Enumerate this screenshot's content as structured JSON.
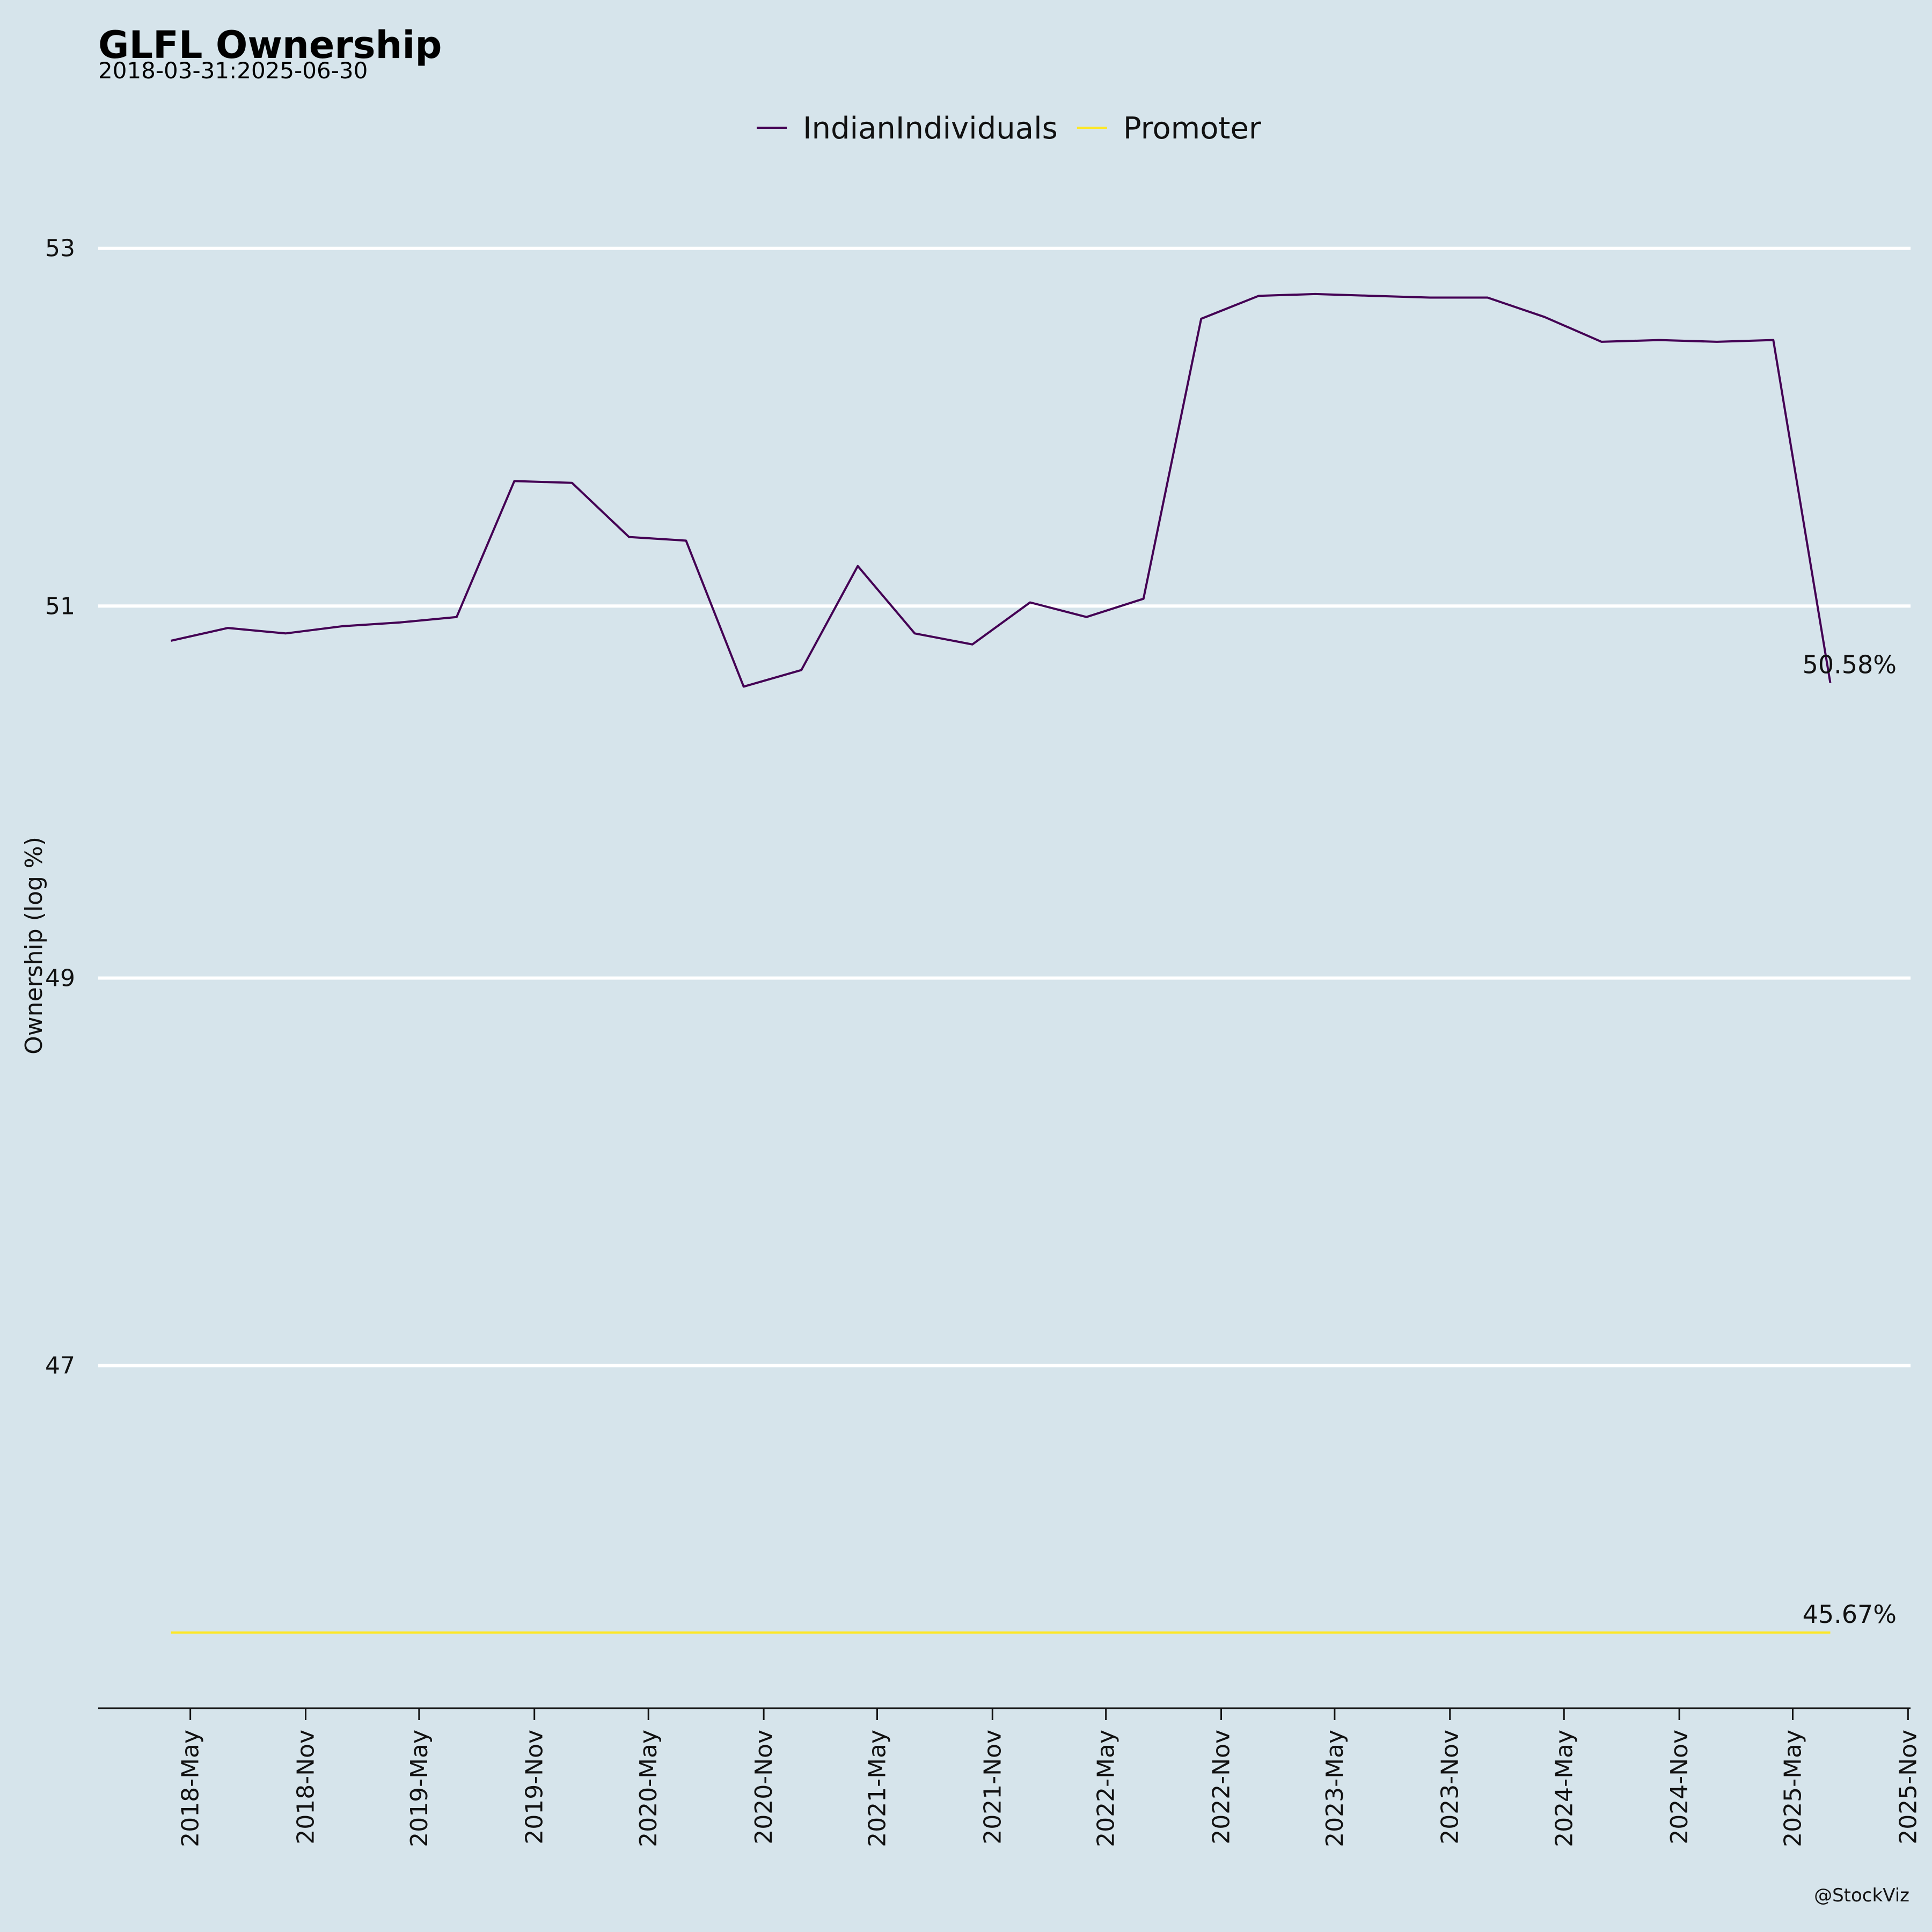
{
  "chart_data": {
    "type": "line",
    "title": "GLFL Ownership",
    "subtitle": "2018-03-31:2025-06-30",
    "ylabel": "Ownership (log %)",
    "xlabel": "",
    "credit": "@StockViz",
    "y_scale": "log",
    "ylim": [
      45.3,
      53.5
    ],
    "yticks": [
      47,
      49,
      51,
      53
    ],
    "ytick_labels": [
      "47",
      "49",
      "51",
      "53"
    ],
    "x_tick_labels": [
      "2018-May",
      "2018-Nov",
      "2019-May",
      "2019-Nov",
      "2020-May",
      "2020-Nov",
      "2021-May",
      "2021-Nov",
      "2022-May",
      "2022-Nov",
      "2023-May",
      "2023-Nov",
      "2024-May",
      "2024-Nov",
      "2025-May",
      "2025-Nov"
    ],
    "x_tick_dates": [
      "2018-05-01",
      "2018-11-01",
      "2019-05-01",
      "2019-11-01",
      "2020-05-01",
      "2020-11-01",
      "2021-05-01",
      "2021-11-01",
      "2022-05-01",
      "2022-11-01",
      "2023-05-01",
      "2023-11-01",
      "2024-05-01",
      "2024-11-01",
      "2025-05-01",
      "2025-11-01"
    ],
    "xlim": [
      "2017-12-05",
      "2025-11-05"
    ],
    "legend_position": "top-center",
    "grid": "horizontal",
    "x": [
      "2018-03-31",
      "2018-06-30",
      "2018-09-30",
      "2018-12-31",
      "2019-03-31",
      "2019-06-30",
      "2019-09-30",
      "2019-12-31",
      "2020-03-31",
      "2020-06-30",
      "2020-09-30",
      "2020-12-31",
      "2021-03-31",
      "2021-06-30",
      "2021-09-30",
      "2021-12-31",
      "2022-03-31",
      "2022-06-30",
      "2022-09-30",
      "2022-12-31",
      "2023-03-31",
      "2023-06-30",
      "2023-09-30",
      "2023-12-31",
      "2024-03-31",
      "2024-06-30",
      "2024-09-30",
      "2024-12-31",
      "2025-03-31",
      "2025-06-30"
    ],
    "series": [
      {
        "name": "IndianIndividuals",
        "color": "#440154",
        "end_label": "50.58%",
        "values": [
          50.81,
          50.88,
          50.85,
          50.89,
          50.91,
          50.94,
          51.69,
          51.68,
          51.38,
          51.36,
          50.56,
          50.65,
          51.22,
          50.85,
          50.79,
          51.02,
          50.94,
          51.04,
          52.6,
          52.73,
          52.74,
          52.73,
          52.72,
          52.72,
          52.61,
          52.47,
          52.48,
          52.47,
          52.48,
          50.58
        ]
      },
      {
        "name": "Promoter",
        "color": "#fde725",
        "end_label": "45.67%",
        "values": [
          45.67,
          45.67,
          45.67,
          45.67,
          45.67,
          45.67,
          45.67,
          45.67,
          45.67,
          45.67,
          45.67,
          45.67,
          45.67,
          45.67,
          45.67,
          45.67,
          45.67,
          45.67,
          45.67,
          45.67,
          45.67,
          45.67,
          45.67,
          45.67,
          45.67,
          45.67,
          45.67,
          45.67,
          45.67,
          45.67
        ]
      }
    ]
  }
}
